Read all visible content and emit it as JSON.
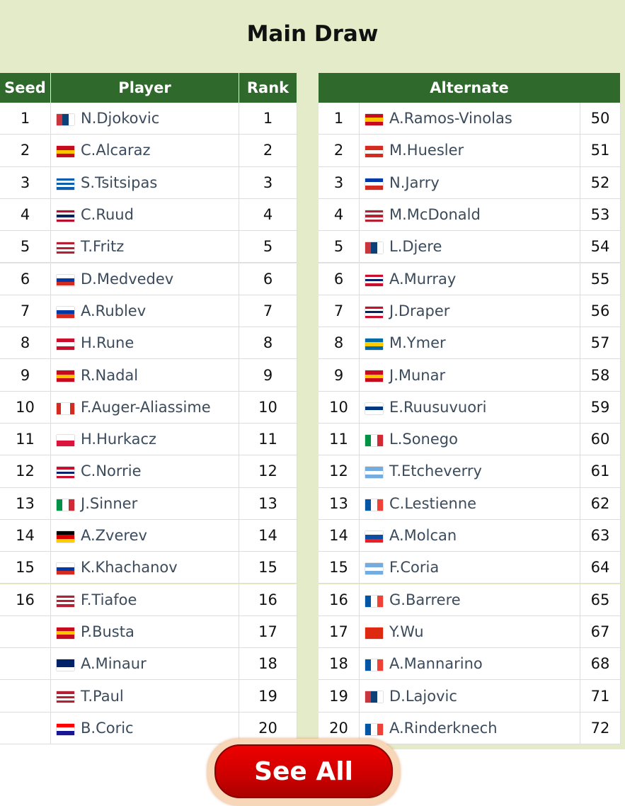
{
  "header": {
    "title": "Main Draw"
  },
  "main": {
    "columns": [
      "Seed",
      "Player",
      "Rank"
    ],
    "rows": [
      {
        "seed": 1,
        "player": "N.Djokovic",
        "rank": 1
      },
      {
        "seed": 2,
        "player": "C.Alcaraz",
        "rank": 2
      },
      {
        "seed": 3,
        "player": "S.Tsitsipas",
        "rank": 3
      },
      {
        "seed": 4,
        "player": "C.Ruud",
        "rank": 4
      },
      {
        "seed": 5,
        "player": "T.Fritz",
        "rank": 5
      },
      {
        "seed": 6,
        "player": "D.Medvedev",
        "rank": 6
      },
      {
        "seed": 7,
        "player": "A.Rublev",
        "rank": 7
      },
      {
        "seed": 8,
        "player": "H.Rune",
        "rank": 8
      },
      {
        "seed": 9,
        "player": "R.Nadal",
        "rank": 9
      },
      {
        "seed": 10,
        "player": "F.Auger-Aliassime",
        "rank": 10
      },
      {
        "seed": 11,
        "player": "H.Hurkacz",
        "rank": 11
      },
      {
        "seed": 12,
        "player": "C.Norrie",
        "rank": 12
      },
      {
        "seed": 13,
        "player": "J.Sinner",
        "rank": 13
      },
      {
        "seed": 14,
        "player": "A.Zverev",
        "rank": 14
      },
      {
        "seed": 15,
        "player": "K.Khachanov",
        "rank": 15
      },
      {
        "seed": 16,
        "player": "F.Tiafoe",
        "rank": 16
      },
      {
        "player": "P.Busta",
        "rank": 17
      },
      {
        "player": "A.Minaur",
        "rank": 18
      },
      {
        "player": "T.Paul",
        "rank": 19
      },
      {
        "player": "B.Coric",
        "rank": 20
      }
    ]
  },
  "alternate": {
    "title": "Alternate",
    "rows": [
      {
        "no": 1,
        "player": "A.Ramos-Vinolas",
        "rank": 50
      },
      {
        "no": 2,
        "player": "M.Huesler",
        "rank": 51
      },
      {
        "no": 3,
        "player": "N.Jarry",
        "rank": 52
      },
      {
        "no": 4,
        "player": "M.McDonald",
        "rank": 53
      },
      {
        "no": 5,
        "player": "L.Djere",
        "rank": 54
      },
      {
        "no": 6,
        "player": "A.Murray",
        "rank": 55
      },
      {
        "no": 7,
        "player": "J.Draper",
        "rank": 56
      },
      {
        "no": 8,
        "player": "M.Ymer",
        "rank": 57
      },
      {
        "no": 9,
        "player": "J.Munar",
        "rank": 58
      },
      {
        "no": 10,
        "player": "E.Ruusuvuori",
        "rank": 59
      },
      {
        "no": 11,
        "player": "L.Sonego",
        "rank": 60
      },
      {
        "no": 12,
        "player": "T.Etcheverry",
        "rank": 61
      },
      {
        "no": 13,
        "player": "C.Lestienne",
        "rank": 62
      },
      {
        "no": 14,
        "player": "A.Molcan",
        "rank": 63
      },
      {
        "no": 15,
        "player": "F.Coria",
        "rank": 64
      },
      {
        "no": 16,
        "player": "G.Barrere",
        "rank": 65
      },
      {
        "no": 17,
        "player": "Y.Wu",
        "rank": 67
      },
      {
        "no": 18,
        "player": "A.Mannarino",
        "rank": 68
      },
      {
        "no": 19,
        "player": "D.Lajovic",
        "rank": 71
      },
      {
        "no": 20,
        "player": "A.Rinderknech",
        "rank": 72
      }
    ]
  },
  "button": {
    "label": "See All"
  }
}
